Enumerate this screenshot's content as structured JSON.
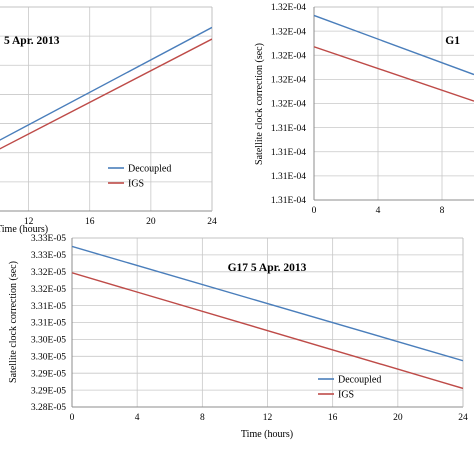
{
  "chart_data": [
    {
      "type": "line",
      "title": "5 Apr. 2013",
      "xlabel": "Time (hours)",
      "ylabel": "",
      "x_ticks": [
        12,
        16,
        20,
        24
      ],
      "xlim": [
        10,
        24
      ],
      "ylim": [
        0,
        7
      ],
      "grid": true,
      "legend": "bottom-left",
      "series": [
        {
          "name": "Decoupled",
          "color": "#4a7ebb",
          "x": [
            10,
            24
          ],
          "y": [
            2.4,
            6.3
          ]
        },
        {
          "name": "IGS",
          "color": "#be4b48",
          "x": [
            10,
            24
          ],
          "y": [
            2.1,
            5.9
          ]
        }
      ]
    },
    {
      "type": "line",
      "title": "G1",
      "xlabel": "",
      "ylabel": "Satellite clock correction (sec)",
      "y_tick_labels": [
        "1.32E-04",
        "1.32E-04",
        "1.32E-04",
        "1.32E-04",
        "1.32E-04",
        "1.31E-04",
        "1.31E-04",
        "1.31E-04",
        "1.31E-04"
      ],
      "x_ticks": [
        0,
        4,
        8
      ],
      "xlim": [
        0,
        10
      ],
      "ylim": [
        0,
        8
      ],
      "grid": true,
      "series": [
        {
          "color": "#4a7ebb",
          "x": [
            0,
            10
          ],
          "y": [
            7.65,
            5.2
          ]
        },
        {
          "color": "#be4b48",
          "x": [
            0,
            10
          ],
          "y": [
            6.35,
            4.1
          ]
        }
      ]
    },
    {
      "type": "line",
      "title": "G17 5 Apr. 2013",
      "xlabel": "Time (hours)",
      "ylabel": "Satellite clock correction (sec)",
      "y_tick_labels": [
        "3.33E-05",
        "3.33E-05",
        "3.32E-05",
        "3.32E-05",
        "3.31E-05",
        "3.31E-05",
        "3.30E-05",
        "3.30E-05",
        "3.29E-05",
        "3.29E-05",
        "3.28E-05"
      ],
      "x_ticks": [
        0,
        4,
        8,
        12,
        16,
        20,
        24
      ],
      "xlim": [
        0,
        24
      ],
      "ylim": [
        3.28e-05,
        3.33e-05
      ],
      "grid": true,
      "legend": "bottom-right",
      "series": [
        {
          "name": "Decoupled",
          "color": "#4a7ebb",
          "x": [
            0,
            24
          ],
          "y": [
            3.3275e-05,
            3.2937e-05
          ]
        },
        {
          "name": "IGS",
          "color": "#be4b48",
          "x": [
            0,
            24
          ],
          "y": [
            3.3197e-05,
            3.2855e-05
          ]
        }
      ]
    }
  ]
}
